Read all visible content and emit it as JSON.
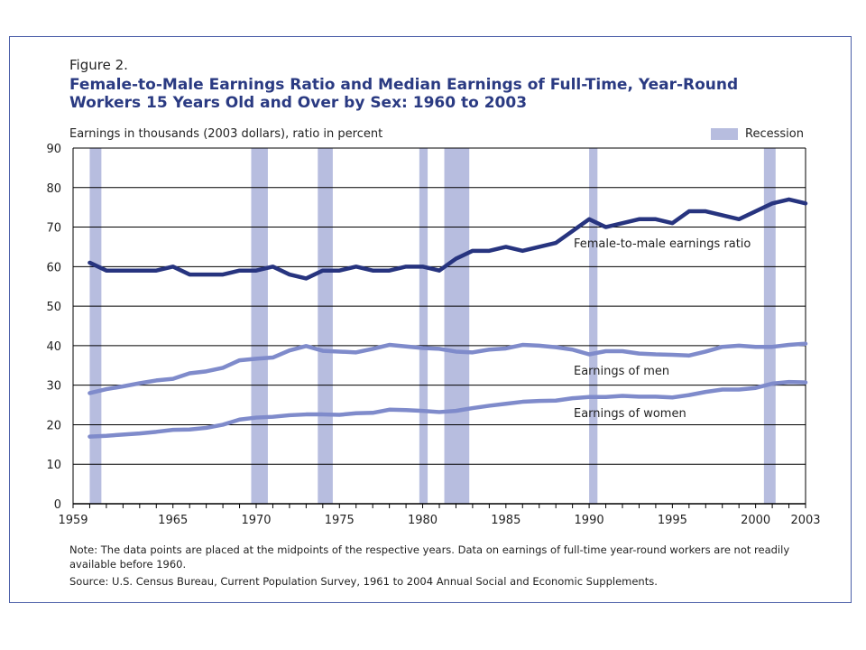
{
  "figure_label": "Figure 2.",
  "title_line1": "Female-to-Male Earnings Ratio and Median Earnings of Full-Time, Year-Round",
  "title_line2": "Workers 15 Years Old and Over by Sex:  1960 to 2003",
  "note": "Note:  The data points are placed at the midpoints of the respective years.  Data on earnings of full-time year-round workers are not readily available before 1960.",
  "source": "Source:  U.S. Census Bureau, Current Population Survey, 1961 to 2004 Annual Social and Economic Supplements.",
  "colors": {
    "ratio": "#27347f",
    "earnings": "#7f8bcb",
    "recession": "#b7bddf",
    "frame": "#4a5ea8"
  },
  "chart_data": {
    "type": "line",
    "ylabel": "Earnings in thousands (2003 dollars), ratio in percent",
    "xlim": [
      1959,
      2003
    ],
    "ylim": [
      0,
      90
    ],
    "y_ticks": [
      0,
      10,
      20,
      30,
      40,
      50,
      60,
      70,
      80,
      90
    ],
    "x_tick_labels": [
      "1959",
      "1965",
      "1970",
      "1975",
      "1980",
      "1985",
      "1990",
      "1995",
      "2000",
      "2003"
    ],
    "x_tick_values": [
      1959,
      1965,
      1970,
      1975,
      1980,
      1985,
      1990,
      1995,
      2000,
      2003
    ],
    "grid": "horizontal",
    "legend": {
      "label": "Recession",
      "placement": "top-right"
    },
    "recessions": [
      [
        1960.0,
        1960.7
      ],
      [
        1969.7,
        1970.7
      ],
      [
        1973.7,
        1974.6
      ],
      [
        1979.8,
        1980.3
      ],
      [
        1981.3,
        1982.8
      ],
      [
        1990.0,
        1990.5
      ],
      [
        2000.5,
        2001.2
      ]
    ],
    "x": [
      1960,
      1961,
      1962,
      1963,
      1964,
      1965,
      1966,
      1967,
      1968,
      1969,
      1970,
      1971,
      1972,
      1973,
      1974,
      1975,
      1976,
      1977,
      1978,
      1979,
      1980,
      1981,
      1982,
      1983,
      1984,
      1985,
      1986,
      1987,
      1988,
      1989,
      1990,
      1991,
      1992,
      1993,
      1994,
      1995,
      1996,
      1997,
      1998,
      1999,
      2000,
      2001,
      2002,
      2003
    ],
    "series": [
      {
        "name": "Female-to-male earnings ratio",
        "values": [
          61,
          59,
          59,
          59,
          59,
          60,
          58,
          58,
          58,
          59,
          59,
          60,
          58,
          57,
          59,
          59,
          60,
          59,
          59,
          60,
          60,
          59,
          62,
          64,
          64,
          65,
          64,
          65,
          66,
          69,
          72,
          70,
          71,
          72,
          72,
          71,
          74,
          74,
          73,
          72,
          74,
          76,
          77,
          76
        ]
      },
      {
        "name": "Earnings of men",
        "values": [
          28,
          29,
          29.7,
          30.5,
          31.2,
          31.6,
          33,
          33.5,
          34.4,
          36.3,
          36.7,
          37,
          38.8,
          39.9,
          38.7,
          38.5,
          38.3,
          39.2,
          40.2,
          39.8,
          39.4,
          39.2,
          38.5,
          38.3,
          39.0,
          39.3,
          40.2,
          40.0,
          39.6,
          39.0,
          37.8,
          38.6,
          38.6,
          38.0,
          37.8,
          37.7,
          37.5,
          38.5,
          39.7,
          40.0,
          39.7,
          39.7,
          40.2,
          40.5
        ]
      },
      {
        "name": "Earnings of women",
        "values": [
          17,
          17.2,
          17.5,
          17.8,
          18.2,
          18.7,
          18.8,
          19.2,
          20,
          21.3,
          21.8,
          22,
          22.4,
          22.6,
          22.6,
          22.5,
          22.9,
          23,
          23.8,
          23.7,
          23.5,
          23.2,
          23.5,
          24.2,
          24.8,
          25.3,
          25.8,
          26.0,
          26.1,
          26.7,
          27.0,
          27.0,
          27.3,
          27.1,
          27.1,
          26.9,
          27.5,
          28.3,
          28.9,
          28.9,
          29.3,
          30.4,
          30.8,
          30.7
        ]
      }
    ]
  }
}
